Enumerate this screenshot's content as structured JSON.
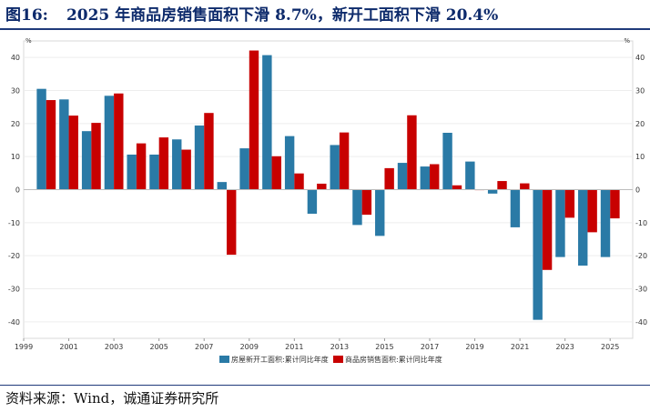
{
  "title": {
    "number": "图16:",
    "text": "2025 年商品房销售面积下滑 8.7%，新开工面积下滑 20.4%"
  },
  "source": "资料来源：Wind，诚通证券研究所",
  "colors": {
    "new_start": "#2a7aa6",
    "sales": "#c80000",
    "title": "#0d2a6b"
  },
  "chart_data": {
    "type": "bar",
    "x": [
      2000,
      2001,
      2002,
      2003,
      2004,
      2005,
      2006,
      2007,
      2008,
      2009,
      2010,
      2011,
      2012,
      2013,
      2014,
      2015,
      2016,
      2017,
      2018,
      2019,
      2020,
      2021,
      2022,
      2023,
      2024,
      2025
    ],
    "series": [
      {
        "name": "房屋新开工面积:累计同比年度",
        "values": [
          30.5,
          27.3,
          17.7,
          28.4,
          10.6,
          10.6,
          15.2,
          19.4,
          2.3,
          12.5,
          40.7,
          16.2,
          -7.3,
          13.5,
          -10.7,
          -14.0,
          8.1,
          7.0,
          17.2,
          8.5,
          -1.2,
          -11.4,
          -39.4,
          -20.4,
          -23.0,
          -20.4
        ]
      },
      {
        "name": "商品房销售面积:累计同比年度",
        "values": [
          27.1,
          22.4,
          20.2,
          29.1,
          14.0,
          15.8,
          12.1,
          23.2,
          -19.7,
          42.1,
          10.1,
          4.9,
          1.8,
          17.3,
          -7.6,
          6.5,
          22.5,
          7.7,
          1.3,
          -0.1,
          2.6,
          1.9,
          -24.3,
          -8.5,
          -12.9,
          -8.7
        ]
      }
    ],
    "ylim": [
      -45,
      45
    ],
    "xlim": [
      1999,
      2026
    ],
    "y_ticks": [
      "40",
      "30",
      "20",
      "10",
      "0",
      "-10",
      "-20",
      "-30",
      "-40"
    ],
    "y_tick_values": [
      40,
      30,
      20,
      10,
      0,
      -10,
      -20,
      -30,
      -40
    ],
    "x_ticks": [
      "1999",
      "2001",
      "2003",
      "2005",
      "2007",
      "2009",
      "2011",
      "2013",
      "2015",
      "2017",
      "2019",
      "2021",
      "2023",
      "2025"
    ],
    "x_tick_values": [
      1999,
      2001,
      2003,
      2005,
      2007,
      2009,
      2011,
      2013,
      2015,
      2017,
      2019,
      2021,
      2023,
      2025
    ],
    "left_unit": "%",
    "right_unit": "%",
    "right_ticks": [
      "40",
      "30",
      "20",
      "10",
      "0",
      "-10",
      "-20",
      "-30",
      "-40"
    ],
    "right_tick_values": [
      40,
      30,
      20,
      10,
      0,
      -10,
      -20,
      -30,
      -40
    ],
    "legend": {
      "position": "bottom-center",
      "items": [
        "房屋新开工面积:累计同比年度",
        "商品房销售面积:累计同比年度"
      ]
    }
  }
}
